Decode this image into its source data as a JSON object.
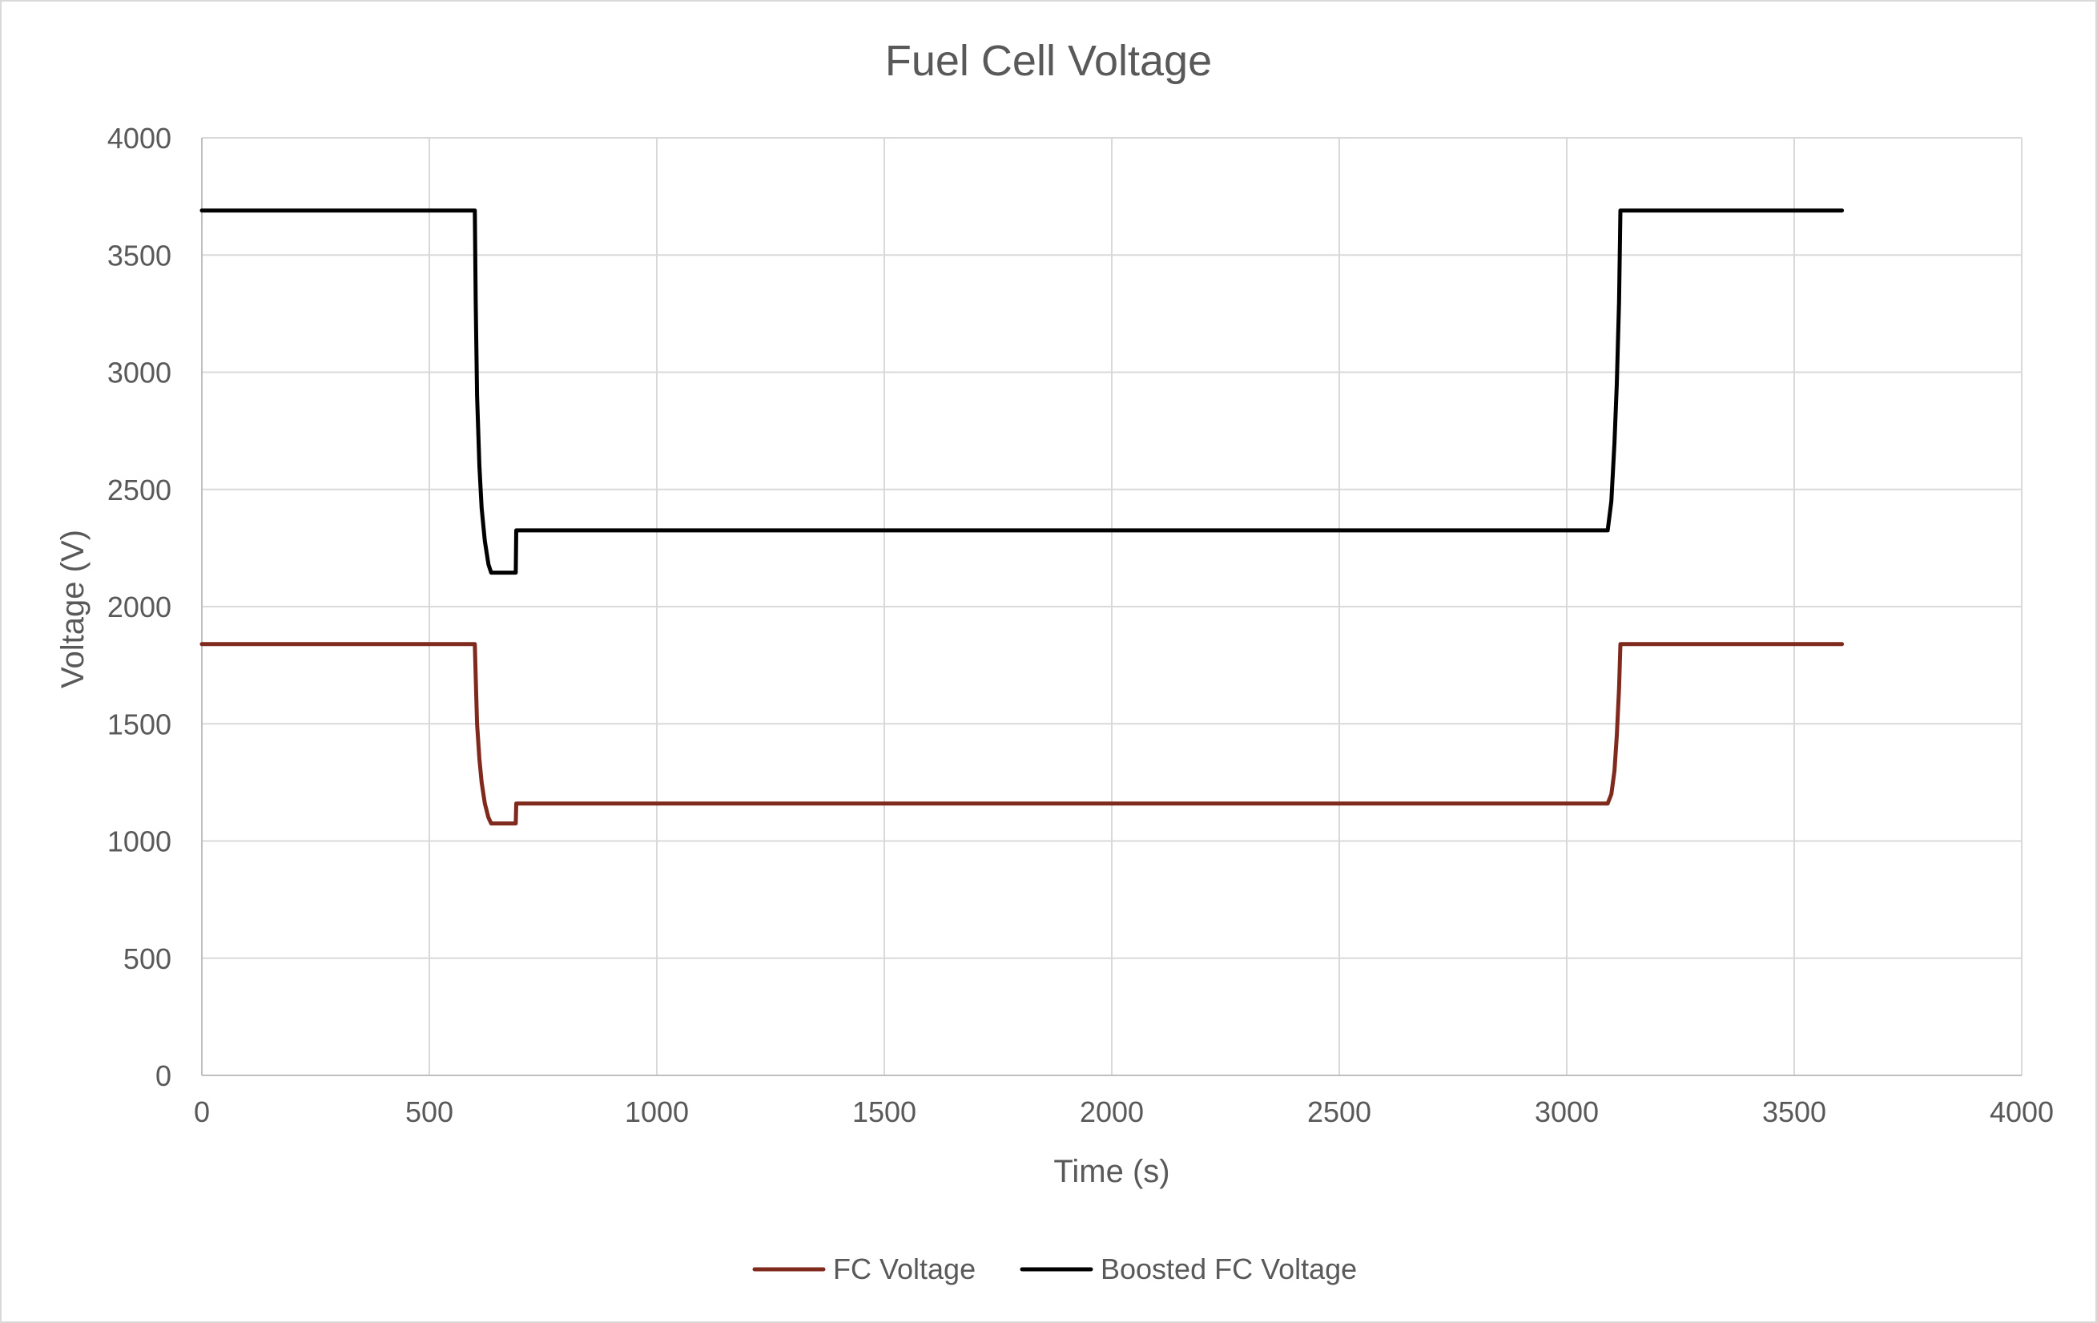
{
  "chart_data": {
    "type": "line",
    "title": "Fuel Cell Voltage",
    "xlabel": "Time (s)",
    "ylabel": "Voltage (V)",
    "xlim": [
      0,
      4000
    ],
    "ylim": [
      0,
      4000
    ],
    "xticks": [
      0,
      500,
      1000,
      1500,
      2000,
      2500,
      3000,
      3500,
      4000
    ],
    "yticks": [
      0,
      500,
      1000,
      1500,
      2000,
      2500,
      3000,
      3500,
      4000
    ],
    "grid": true,
    "legend_position": "bottom",
    "series": [
      {
        "name": "FC Voltage",
        "color": "#7f2a1d",
        "points": [
          [
            0,
            1840
          ],
          [
            600,
            1840
          ],
          [
            602,
            1700
          ],
          [
            605,
            1500
          ],
          [
            610,
            1350
          ],
          [
            615,
            1250
          ],
          [
            622,
            1160
          ],
          [
            630,
            1100
          ],
          [
            636,
            1075
          ],
          [
            690,
            1075
          ],
          [
            691,
            1160
          ],
          [
            3090,
            1160
          ],
          [
            3098,
            1200
          ],
          [
            3105,
            1300
          ],
          [
            3110,
            1450
          ],
          [
            3115,
            1650
          ],
          [
            3118,
            1840
          ],
          [
            3605,
            1840
          ]
        ]
      },
      {
        "name": "Boosted FC Voltage",
        "color": "#000000",
        "points": [
          [
            0,
            3690
          ],
          [
            600,
            3690
          ],
          [
            602,
            3300
          ],
          [
            605,
            2900
          ],
          [
            610,
            2600
          ],
          [
            615,
            2420
          ],
          [
            622,
            2280
          ],
          [
            630,
            2180
          ],
          [
            636,
            2145
          ],
          [
            690,
            2145
          ],
          [
            691,
            2325
          ],
          [
            3090,
            2325
          ],
          [
            3098,
            2450
          ],
          [
            3105,
            2700
          ],
          [
            3110,
            2950
          ],
          [
            3115,
            3300
          ],
          [
            3118,
            3690
          ],
          [
            3605,
            3690
          ]
        ]
      }
    ]
  }
}
